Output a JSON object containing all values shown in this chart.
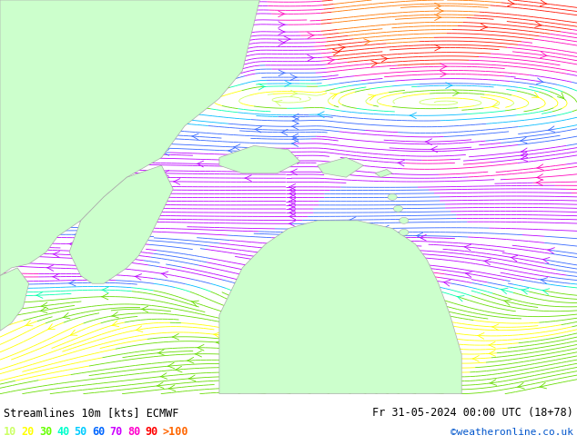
{
  "title_left": "Streamlines 10m [kts] ECMWF",
  "title_right": "Fr 31-05-2024 00:00 UTC (18+78)",
  "credit": "©weatheronline.co.uk",
  "legend_values": [
    "10",
    "20",
    "30",
    "40",
    "50",
    "60",
    "70",
    "80",
    "90",
    ">100"
  ],
  "legend_colors": [
    "#ccff66",
    "#ffff00",
    "#66ff00",
    "#00ffcc",
    "#00ccff",
    "#0066ff",
    "#cc00ff",
    "#ff00cc",
    "#ff0000",
    "#ff6600"
  ],
  "bg_color": "#ffffff",
  "ocean_color": "#e8e8e8",
  "land_color": "#ccffcc",
  "land_border_color": "#aaaaaa",
  "figsize": [
    6.34,
    4.9
  ],
  "dpi": 100,
  "map_extent": [
    -120,
    -30,
    -15,
    40
  ],
  "streamline_density": 3.5,
  "streamline_lw_base": 0.6,
  "arrow_size": 1.2
}
